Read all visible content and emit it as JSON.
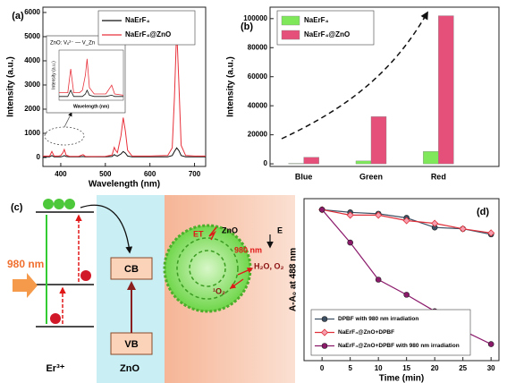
{
  "chart_data": [
    {
      "type": "line",
      "label": "(a)",
      "xlabel": "Wavelength (nm)",
      "ylabel": "Intensity (a.u.)",
      "x": [
        360,
        375,
        380,
        385,
        395,
        400,
        405,
        408,
        412,
        420,
        440,
        450,
        455,
        470,
        500,
        515,
        520,
        523,
        527,
        535,
        540,
        545,
        550,
        560,
        600,
        640,
        650,
        655,
        660,
        665,
        670,
        680,
        700,
        725
      ],
      "series": [
        {
          "name": "NaErF₄",
          "color": "#111111",
          "values": [
            30,
            30,
            80,
            30,
            30,
            30,
            50,
            80,
            40,
            30,
            30,
            40,
            30,
            30,
            30,
            40,
            120,
            80,
            60,
            150,
            250,
            180,
            60,
            30,
            30,
            30,
            80,
            250,
            400,
            280,
            80,
            30,
            30,
            30
          ]
        },
        {
          "name": "NaErF₄@ZnO",
          "color": "#e8303a",
          "values": [
            60,
            60,
            250,
            60,
            60,
            80,
            200,
            330,
            100,
            50,
            50,
            120,
            50,
            40,
            50,
            100,
            420,
            300,
            200,
            900,
            1650,
            1100,
            300,
            60,
            60,
            80,
            400,
            2500,
            5350,
            3000,
            500,
            80,
            60,
            60
          ]
        }
      ],
      "xlim": [
        360,
        725
      ],
      "ylim": [
        -370,
        6220
      ],
      "xticks": [
        400,
        500,
        600,
        700
      ],
      "yticks": [
        0,
        1000,
        2000,
        3000,
        4000,
        5000,
        6000
      ],
      "legend": "upper right",
      "inset": {
        "text": "ZnO: Vₒ²⁻ — V_Zn",
        "xlabel": "Wavelength (nm)",
        "ylabel": "Intensity (a.u.)",
        "xlim": [
          360,
          470
        ],
        "ylim": [
          0,
          400
        ]
      }
    },
    {
      "type": "bar",
      "label": "(b)",
      "ylabel": "Intensity (a.u.)",
      "categories": [
        "Blue",
        "Green",
        "Red"
      ],
      "series": [
        {
          "name": "NaErF₄",
          "color": "#7ee85a",
          "values": [
            300,
            2000,
            8500
          ]
        },
        {
          "name": "NaErF₄@ZnO",
          "color": "#e5507a",
          "values": [
            4500,
            32500,
            102000
          ]
        }
      ],
      "ylim": [
        -1800,
        107900
      ],
      "yticks": [
        0,
        20000,
        40000,
        60000,
        80000,
        100000
      ],
      "legend": "upper left"
    },
    {
      "type": "line",
      "label": "(d)",
      "xlabel": "Time (min)",
      "ylabel": "A-A₀ at 488 nm",
      "x": [
        0,
        5,
        10,
        15,
        20,
        25,
        30
      ],
      "series": [
        {
          "name": "DPBF with 980 nm irradiation",
          "color": "#3d4f63",
          "marker": "circle",
          "values": [
            1.0,
            0.98,
            0.97,
            0.94,
            0.87,
            0.86,
            0.82
          ]
        },
        {
          "name": "NaErF₄@ZnO+DPBF",
          "color": "#e0303a",
          "marker": "diamond",
          "values": [
            1.0,
            0.96,
            0.96,
            0.92,
            0.9,
            0.86,
            0.83
          ]
        },
        {
          "name": "NaErF₄@ZnO+DPBF with 980 nm irradiation",
          "color": "#8b1a6b",
          "marker": "circle",
          "values": [
            1.0,
            0.76,
            0.49,
            0.38,
            0.26,
            0.12,
            0.02
          ]
        }
      ],
      "xlim": [
        -3.2,
        31.4
      ],
      "ylim": [
        -0.1,
        1.08
      ],
      "xticks": [
        0,
        5,
        10,
        15,
        20,
        25,
        30
      ],
      "legend": "lower left"
    }
  ],
  "diagram": {
    "label": "(c)",
    "excitation": "980 nm",
    "ion": "Er³⁺",
    "host": "ZnO",
    "conduction_band": "CB",
    "valence_band": "VB",
    "transfer": "ET",
    "surface": "ZnO",
    "field": "E",
    "laser": "980 nm",
    "reactants": "H₂O, O₂",
    "product": "¹O₂"
  }
}
